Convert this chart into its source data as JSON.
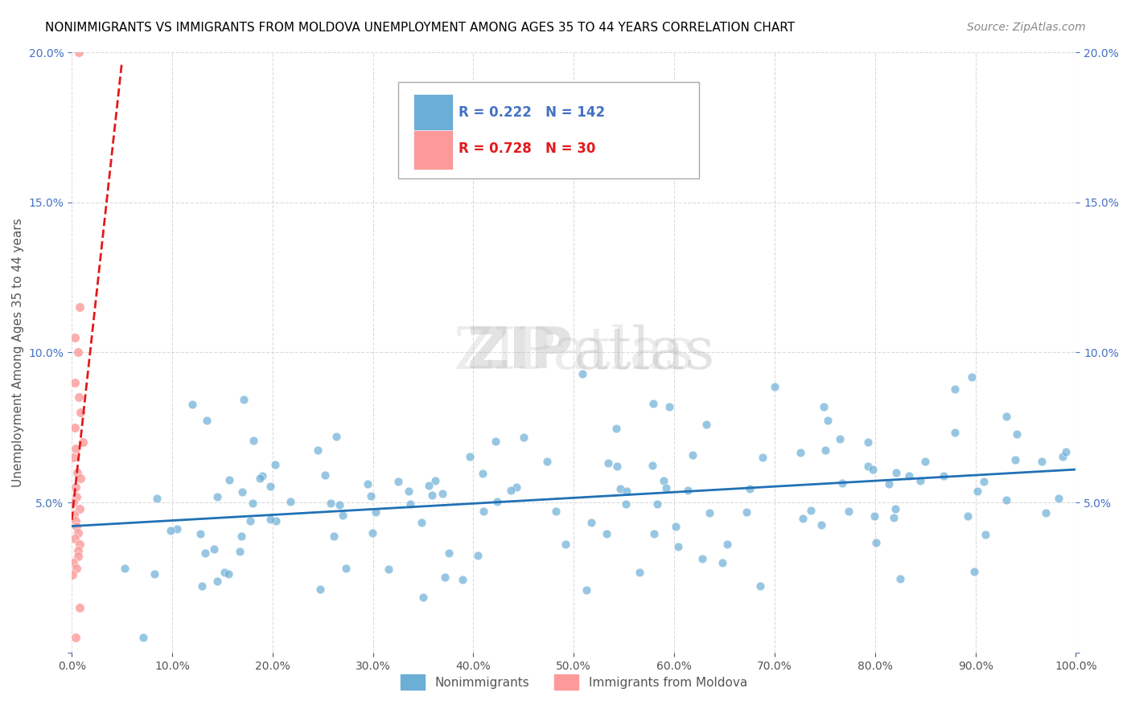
{
  "title": "NONIMMIGRANTS VS IMMIGRANTS FROM MOLDOVA UNEMPLOYMENT AMONG AGES 35 TO 44 YEARS CORRELATION CHART",
  "source": "Source: ZipAtlas.com",
  "ylabel": "Unemployment Among Ages 35 to 44 years",
  "xlabel": "",
  "xlim": [
    0,
    1.0
  ],
  "ylim": [
    0,
    0.2
  ],
  "xticks": [
    0.0,
    0.1,
    0.2,
    0.3,
    0.4,
    0.5,
    0.6,
    0.7,
    0.8,
    0.9,
    1.0
  ],
  "yticks": [
    0.0,
    0.05,
    0.1,
    0.15,
    0.2
  ],
  "xtick_labels": [
    "0.0%",
    "10.0%",
    "20.0%",
    "30.0%",
    "40.0%",
    "50.0%",
    "60.0%",
    "70.0%",
    "80.0%",
    "90.0%",
    "100.0%"
  ],
  "ytick_labels": [
    "",
    "5.0%",
    "10.0%",
    "15.0%",
    "20.0%"
  ],
  "nonimm_color": "#6baed6",
  "imm_color": "#fb9a99",
  "nonimm_line_color": "#2171b5",
  "imm_line_color": "#e31a1c",
  "R_nonimm": 0.222,
  "N_nonimm": 142,
  "R_imm": 0.728,
  "N_imm": 30,
  "watermark": "ZIPatlas",
  "legend_nonimm": "Nonimmigrants",
  "legend_imm": "Immigrants from Moldova",
  "nonimm_seed": 42,
  "imm_seed": 7,
  "title_fontsize": 11,
  "label_fontsize": 11,
  "tick_fontsize": 10,
  "legend_fontsize": 11,
  "source_fontsize": 10
}
